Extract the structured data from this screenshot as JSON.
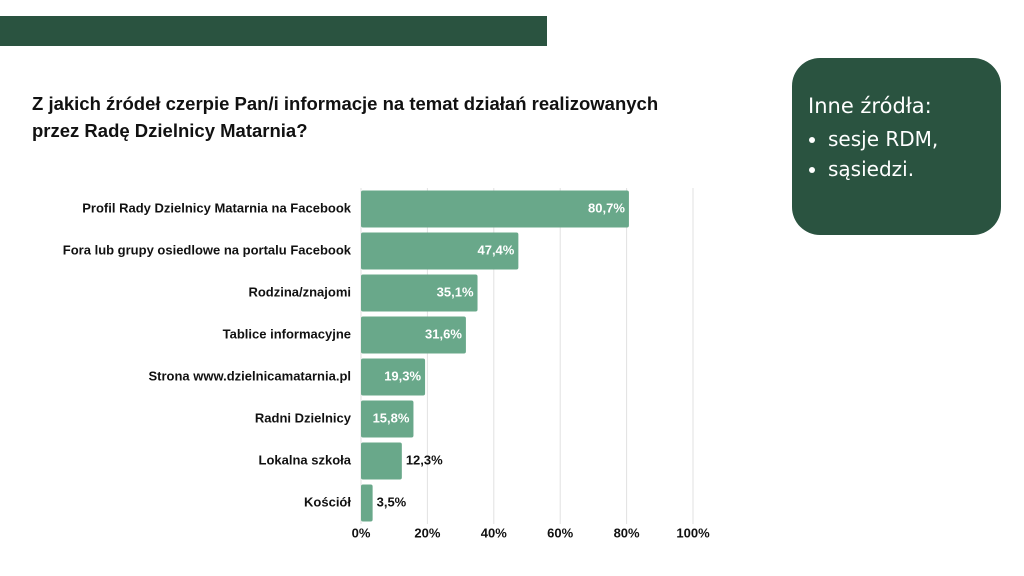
{
  "chart_data": {
    "type": "bar",
    "orientation": "horizontal",
    "title": "Z jakich źródeł czerpie Pan/i informacje na temat działań realizowanych przez Radę Dzielnicy Matarnia?",
    "categories": [
      "Profil Rady Dzielnicy Matarnia na Facebook",
      "Fora lub grupy osiedlowe na portalu Facebook",
      "Rodzina/znajomi",
      "Tablice informacyjne",
      "Strona www.dzielnicamatarnia.pl",
      "Radni Dzielnicy",
      "Lokalna szkoła",
      "Kościół"
    ],
    "values": [
      80.7,
      47.4,
      35.1,
      31.6,
      19.3,
      15.8,
      12.3,
      3.5
    ],
    "value_labels": [
      "80,7%",
      "47,4%",
      "35,1%",
      "31,6%",
      "19,3%",
      "15,8%",
      "12,3%",
      "3,5%"
    ],
    "color": "#69a88a",
    "xlim": [
      0,
      100
    ],
    "xticks": [
      {
        "value": 0,
        "label": "0%"
      },
      {
        "value": 20,
        "label": "20%"
      },
      {
        "value": 40,
        "label": "40%"
      },
      {
        "value": 60,
        "label": "60%"
      },
      {
        "value": 80,
        "label": "80%"
      },
      {
        "value": 100,
        "label": "100%"
      }
    ],
    "grid": true
  },
  "side_note": {
    "title": "Inne źródła:",
    "items": [
      "sesje RDM,",
      "sąsiedzi."
    ]
  }
}
